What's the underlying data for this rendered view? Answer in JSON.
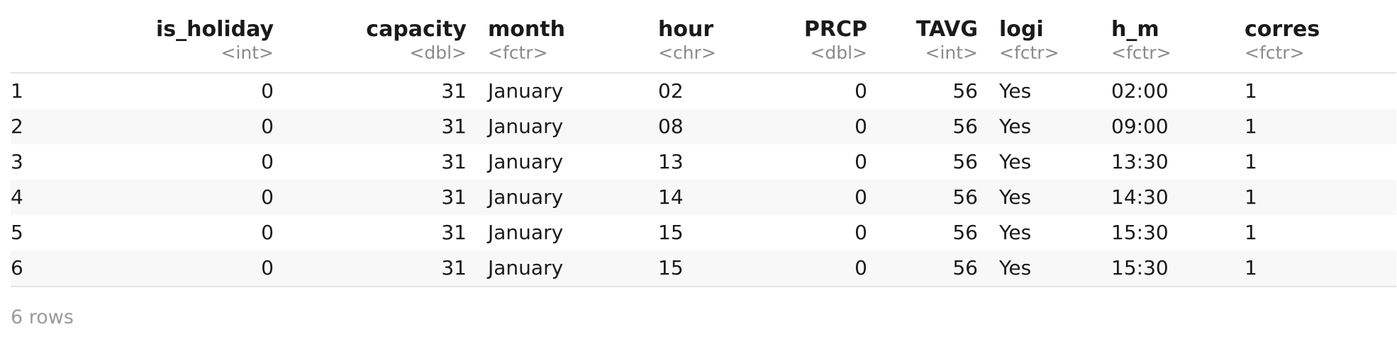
{
  "table": {
    "columns": [
      {
        "name": "",
        "type": ""
      },
      {
        "name": "is_holiday",
        "type": "<int>"
      },
      {
        "name": "capacity",
        "type": "<dbl>"
      },
      {
        "name": "month",
        "type": "<fctr>"
      },
      {
        "name": "hour",
        "type": "<chr>"
      },
      {
        "name": "PRCP",
        "type": "<dbl>"
      },
      {
        "name": "TAVG",
        "type": "<int>"
      },
      {
        "name": "logi",
        "type": "<fctr>"
      },
      {
        "name": "h_m",
        "type": "<fctr>"
      },
      {
        "name": "corres",
        "type": "<fctr>"
      }
    ],
    "rows": [
      [
        "1",
        "0",
        "31",
        "January",
        "02",
        "0",
        "56",
        "Yes",
        "02:00",
        "1"
      ],
      [
        "2",
        "0",
        "31",
        "January",
        "08",
        "0",
        "56",
        "Yes",
        "09:00",
        "1"
      ],
      [
        "3",
        "0",
        "31",
        "January",
        "13",
        "0",
        "56",
        "Yes",
        "13:30",
        "1"
      ],
      [
        "4",
        "0",
        "31",
        "January",
        "14",
        "0",
        "56",
        "Yes",
        "14:30",
        "1"
      ],
      [
        "5",
        "0",
        "31",
        "January",
        "15",
        "0",
        "56",
        "Yes",
        "15:30",
        "1"
      ],
      [
        "6",
        "0",
        "31",
        "January",
        "15",
        "0",
        "56",
        "Yes",
        "15:30",
        "1"
      ]
    ]
  },
  "footer": {
    "row_count": "6 rows"
  }
}
